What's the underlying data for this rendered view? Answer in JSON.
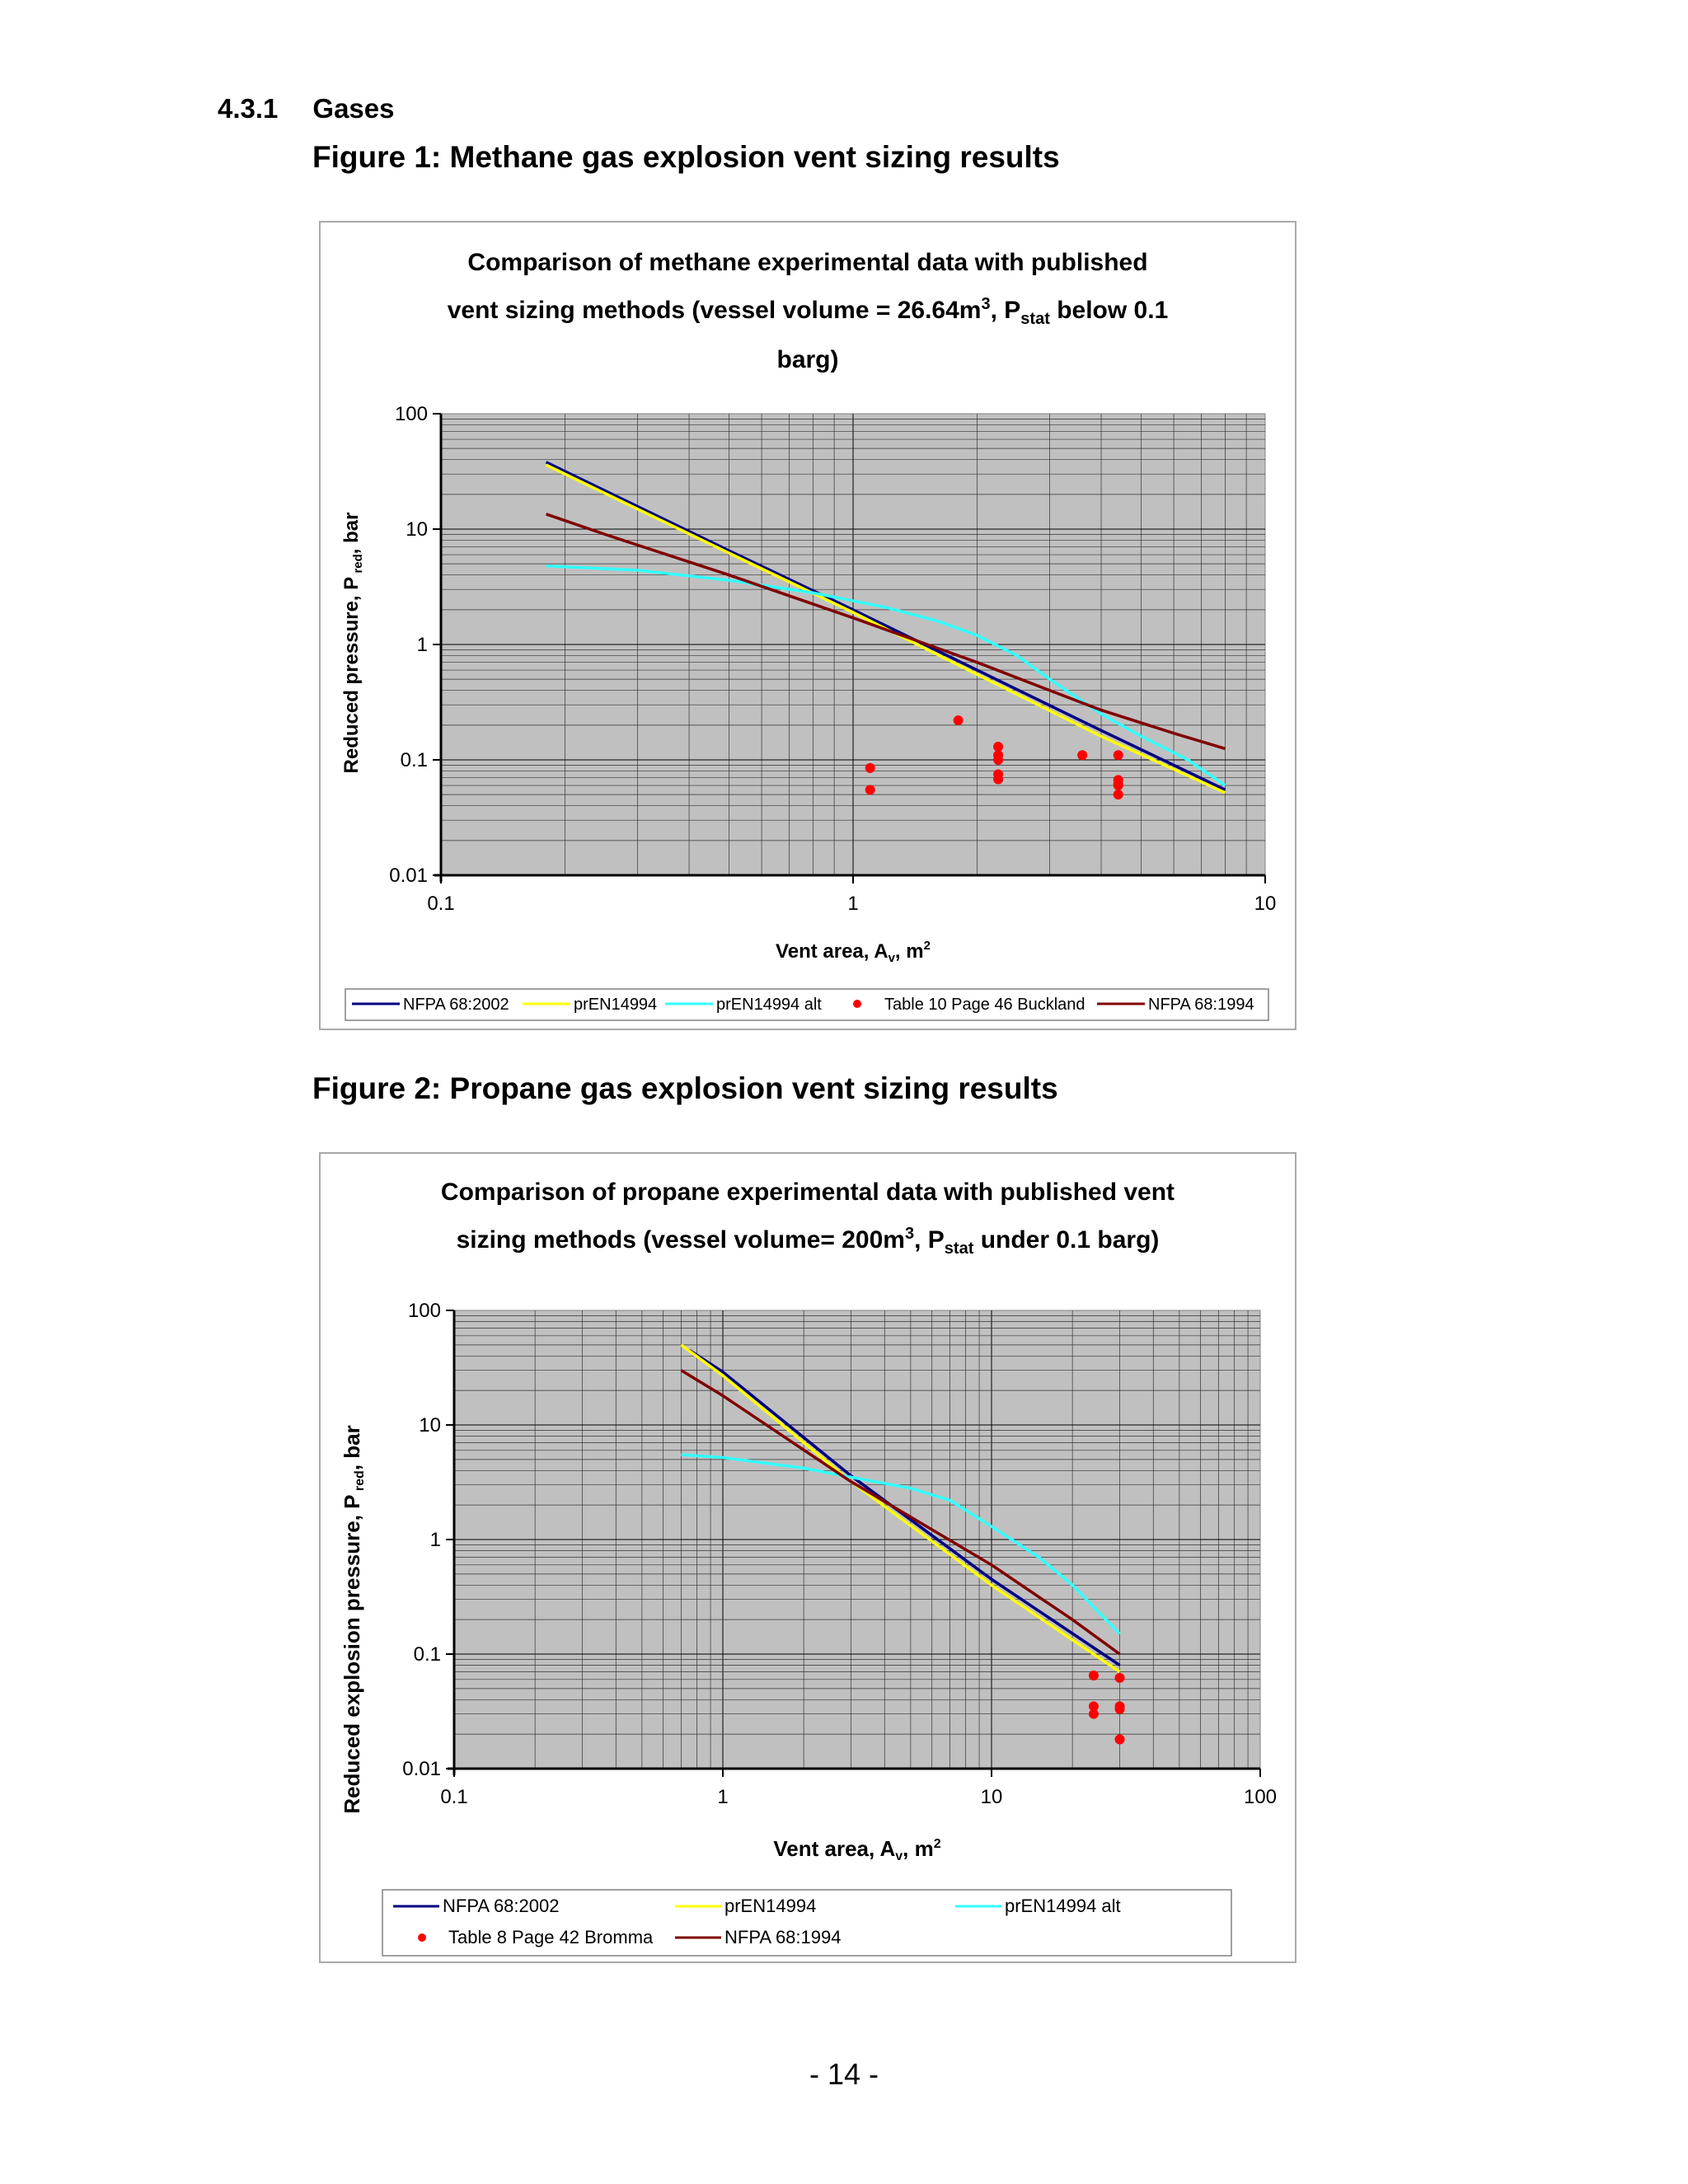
{
  "section": {
    "number": "4.3.1",
    "title": "Gases"
  },
  "figures": [
    {
      "caption": "Figure 1: Methane gas explosion vent sizing results",
      "title_line1": "Comparison of methane experimental data with published",
      "title_line2_pre": "vent sizing methods (vessel volume = 26.64m",
      "title_line2_sup": "3",
      "title_line2_mid": ", P",
      "title_line2_sub": "stat",
      "title_line2_post": " below 0.1",
      "title_line3": "barg)",
      "ylabel_pre": "Reduced pressure, P",
      "ylabel_sub": " red",
      "ylabel_post": ", bar",
      "xlabel_pre": "Vent area, A",
      "xlabel_sub": "v",
      "xlabel_mid": ", m",
      "xlabel_sup": "2",
      "xticks": [
        "0.1",
        "1",
        "10"
      ],
      "yticks": [
        "0.01",
        "0.1",
        "1",
        "10",
        "100"
      ],
      "legend": [
        "NFPA 68:2002",
        "prEN14994",
        "prEN14994 alt",
        "Table 10 Page 46 Buckland",
        "NFPA 68:1994"
      ]
    },
    {
      "caption": "Figure 2: Propane gas explosion vent sizing results",
      "title_line1": "Comparison of propane experimental data with published vent",
      "title_line2_pre": "sizing methods (vessel volume= 200m",
      "title_line2_sup": "3",
      "title_line2_mid": ", P",
      "title_line2_sub": "stat",
      "title_line2_post": " under 0.1 barg)",
      "ylabel_pre": "Reduced explosion pressure, P",
      "ylabel_sub": " red",
      "ylabel_post": ", bar",
      "xlabel_pre": "Vent area, A",
      "xlabel_sub": "v",
      "xlabel_mid": ", m",
      "xlabel_sup": "2",
      "xticks": [
        "0.1",
        "1",
        "10",
        "100"
      ],
      "yticks": [
        "0.01",
        "0.1",
        "1",
        "10",
        "100"
      ],
      "legend": [
        "NFPA 68:2002",
        "prEN14994",
        "prEN14994 alt",
        "Table 8 Page 42 Bromma",
        "NFPA 68:1994"
      ]
    }
  ],
  "colors": {
    "plot_bg": "#c0c0c0",
    "NFPA 68:2002": "#000080",
    "prEN14994": "#ffff00",
    "prEN14994 alt": "#33ffff",
    "data_points": "#ff0000",
    "NFPA 68:1994": "#800000"
  },
  "chart_data": [
    {
      "type": "scatter",
      "xscale": "log",
      "yscale": "log",
      "xlim": [
        0.1,
        10
      ],
      "ylim": [
        0.01,
        100
      ],
      "grid": true,
      "legend_position": "bottom",
      "series": [
        {
          "name": "NFPA 68:2002",
          "mode": "line",
          "x": [
            0.18,
            0.5,
            1,
            2,
            4,
            8
          ],
          "y": [
            38,
            6.5,
            2.0,
            0.6,
            0.18,
            0.055
          ]
        },
        {
          "name": "prEN14994",
          "mode": "line",
          "x": [
            0.18,
            0.5,
            1,
            2,
            4,
            8
          ],
          "y": [
            36,
            6.2,
            1.9,
            0.55,
            0.16,
            0.052
          ]
        },
        {
          "name": "prEN14994 alt",
          "mode": "line",
          "x": [
            0.18,
            0.3,
            0.5,
            0.8,
            1.2,
            1.6,
            2.0,
            2.5,
            3.0,
            4.0,
            5.0,
            6.5,
            8
          ],
          "y": [
            4.8,
            4.4,
            3.6,
            2.8,
            2.1,
            1.6,
            1.2,
            0.8,
            0.5,
            0.25,
            0.16,
            0.1,
            0.06
          ]
        },
        {
          "name": "Table 10 Page 46 Buckland",
          "mode": "markers",
          "x": [
            1.1,
            1.1,
            1.8,
            2.25,
            2.25,
            2.25,
            2.25,
            2.25,
            3.6,
            4.4,
            4.4,
            4.4,
            4.4,
            4.4
          ],
          "y": [
            0.085,
            0.055,
            0.22,
            0.13,
            0.11,
            0.1,
            0.075,
            0.068,
            0.11,
            0.11,
            0.067,
            0.062,
            0.06,
            0.05
          ]
        },
        {
          "name": "NFPA 68:1994",
          "mode": "line",
          "x": [
            0.18,
            0.25,
            0.5,
            1,
            2,
            3,
            4,
            6,
            8
          ],
          "y": [
            13.5,
            9,
            4,
            1.7,
            0.7,
            0.4,
            0.27,
            0.17,
            0.125
          ]
        }
      ]
    },
    {
      "type": "scatter",
      "xscale": "log",
      "yscale": "log",
      "xlim": [
        0.1,
        100
      ],
      "ylim": [
        0.01,
        100
      ],
      "grid": true,
      "legend_position": "bottom",
      "series": [
        {
          "name": "NFPA 68:2002",
          "mode": "line",
          "x": [
            0.75,
            1,
            3,
            10,
            30
          ],
          "y": [
            45,
            29,
            3.6,
            0.45,
            0.08
          ]
        },
        {
          "name": "prEN14994",
          "mode": "line",
          "x": [
            0.7,
            1,
            3,
            10,
            30
          ],
          "y": [
            50,
            27,
            3.2,
            0.4,
            0.07
          ]
        },
        {
          "name": "prEN14994 alt",
          "mode": "line",
          "x": [
            0.7,
            1,
            2,
            3,
            5,
            7,
            10,
            15,
            20,
            30
          ],
          "y": [
            5.5,
            5.2,
            4.2,
            3.5,
            2.8,
            2.2,
            1.3,
            0.7,
            0.4,
            0.15
          ]
        },
        {
          "name": "Table 8 Page 42 Bromma",
          "mode": "markers",
          "x": [
            24,
            24,
            24,
            30,
            30,
            30,
            30
          ],
          "y": [
            0.065,
            0.035,
            0.03,
            0.062,
            0.035,
            0.033,
            0.018
          ]
        },
        {
          "name": "NFPA 68:1994",
          "mode": "line",
          "x": [
            0.7,
            1,
            3,
            10,
            20,
            30
          ],
          "y": [
            30,
            18,
            3.2,
            0.6,
            0.2,
            0.1
          ]
        }
      ]
    }
  ]
}
